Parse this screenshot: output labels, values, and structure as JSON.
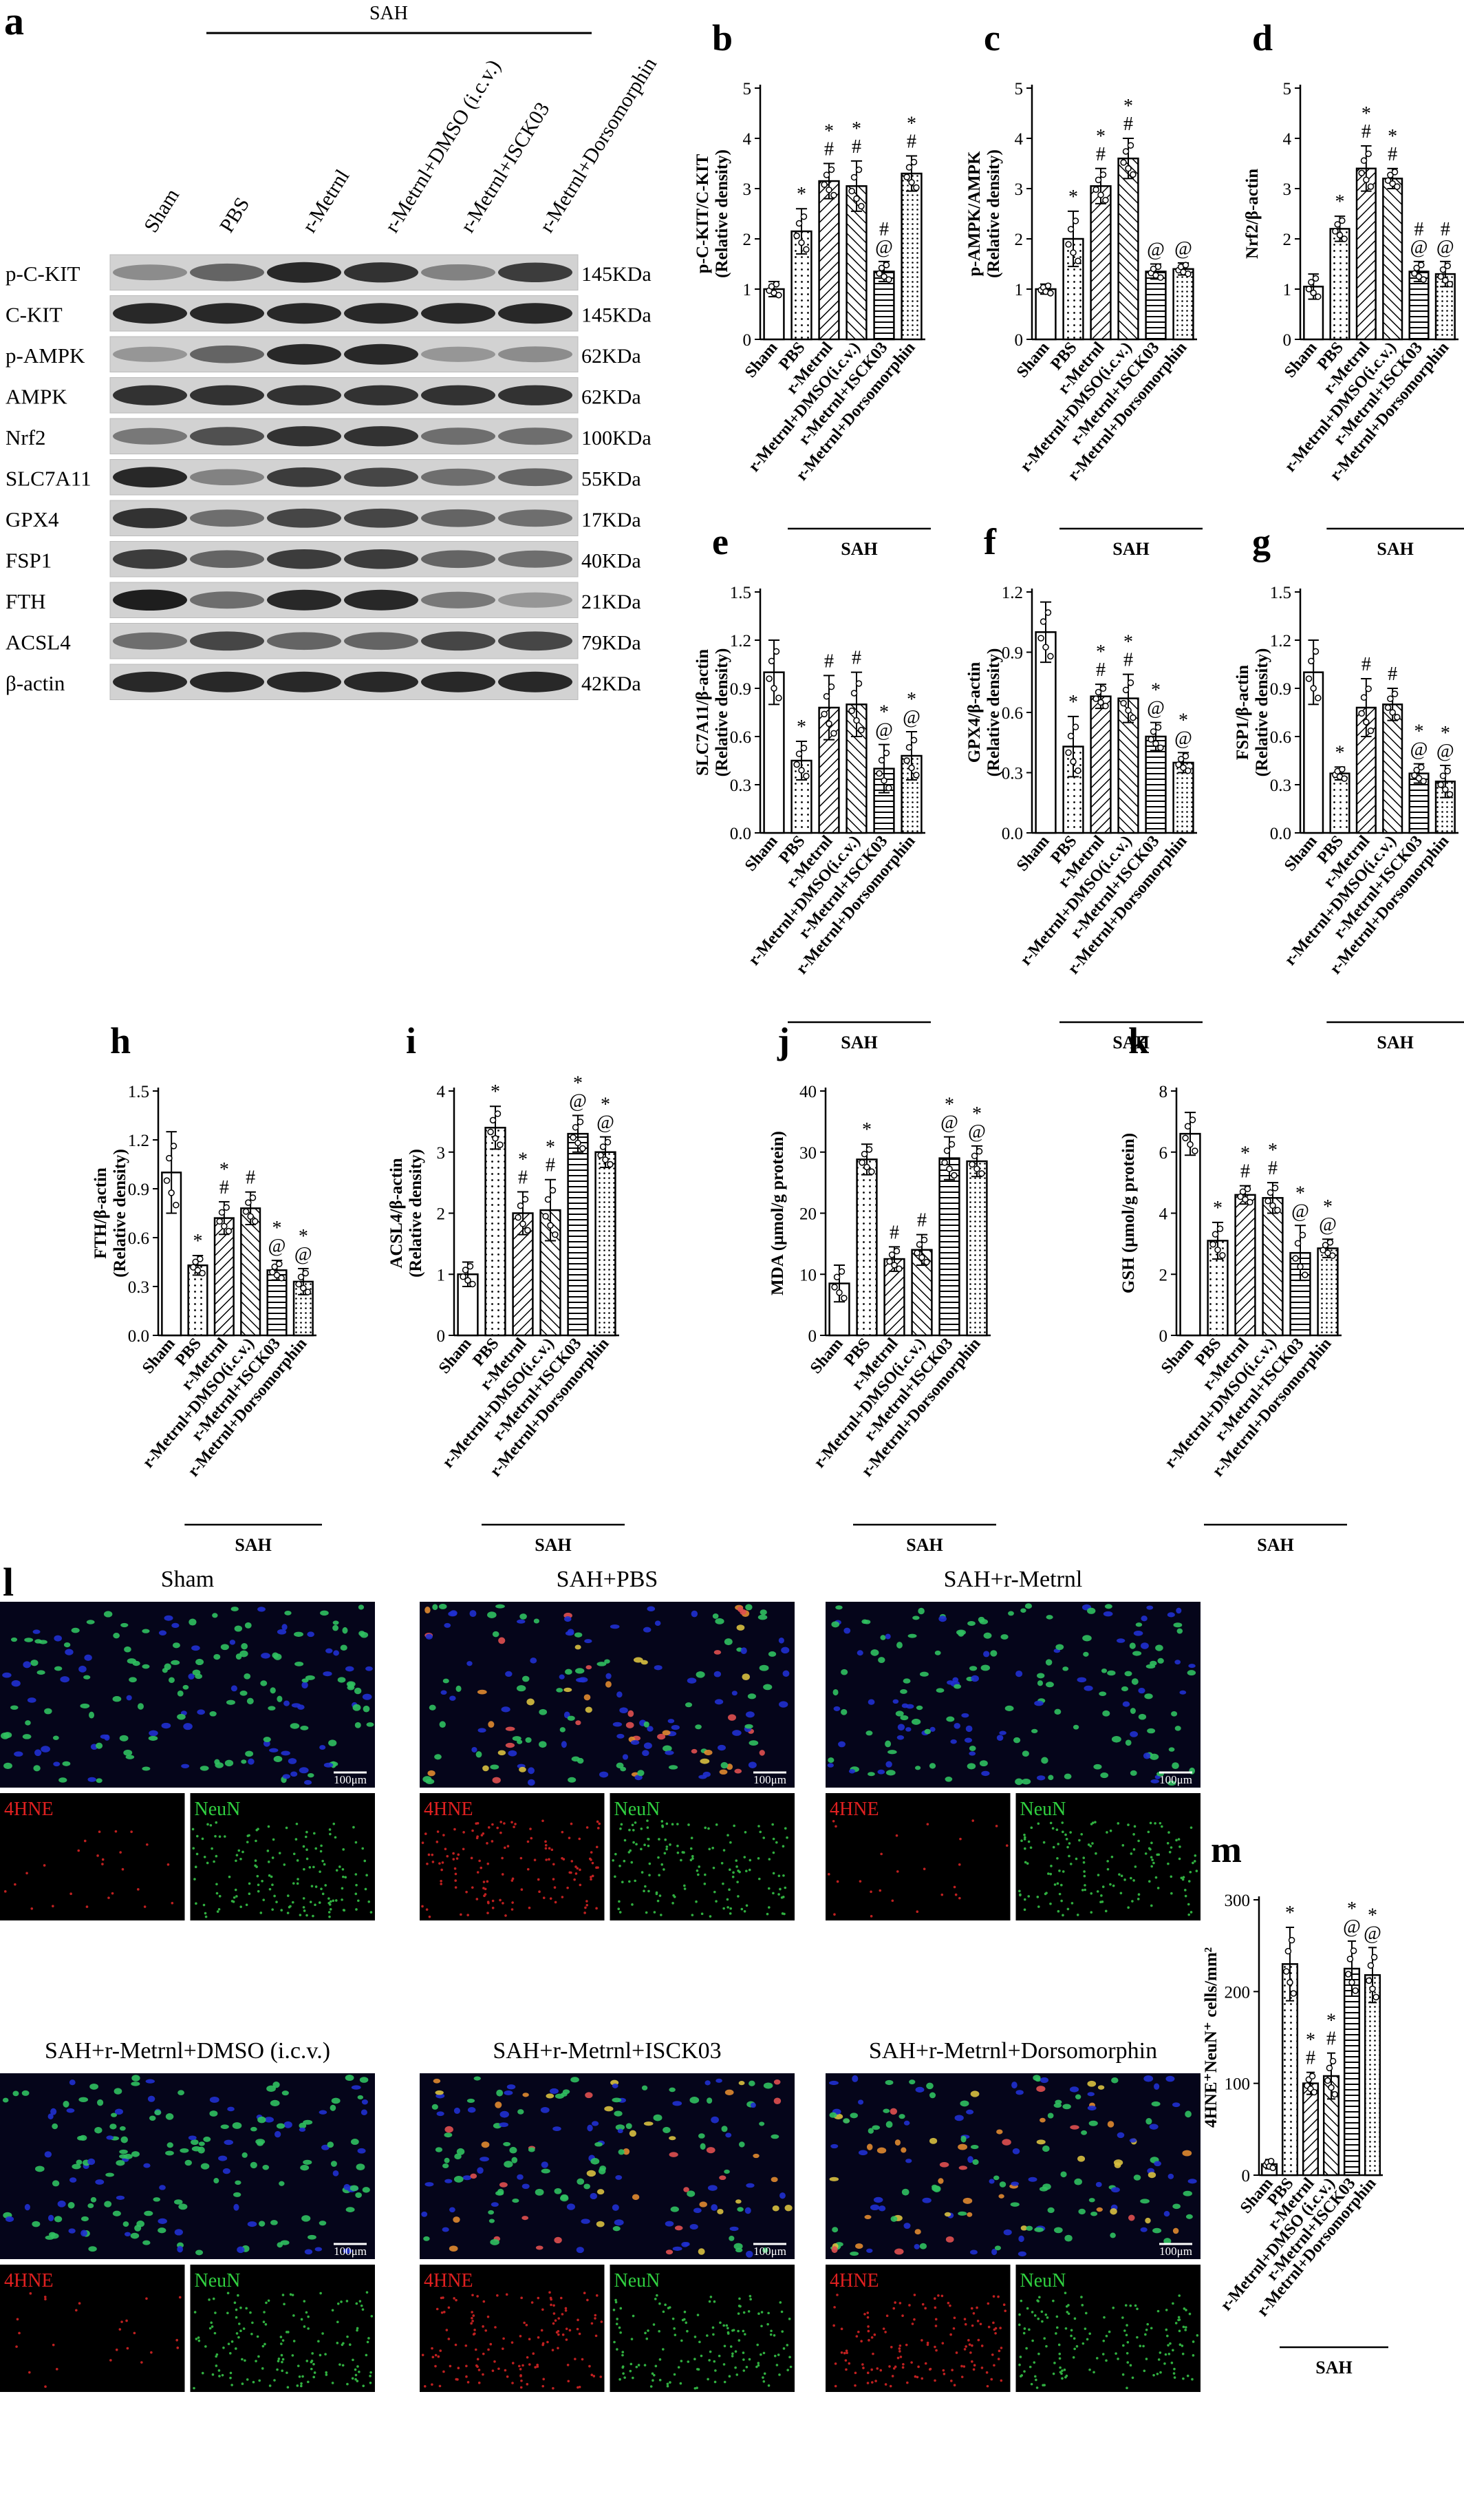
{
  "blot": {
    "panel_letter": "a",
    "group_label": "SAH",
    "lanes": [
      "Sham",
      "PBS",
      "r-Metrnl",
      "r-Metrnl+DMSO (i.c.v.)",
      "r-Metrnl+ISCK03",
      "r-Metrnl+Dorsomorphin"
    ],
    "rows": [
      {
        "protein": "p-C-KIT",
        "size": "145KDa",
        "intensity": [
          0.35,
          0.55,
          0.85,
          0.8,
          0.4,
          0.75
        ]
      },
      {
        "protein": "C-KIT",
        "size": "145KDa",
        "intensity": [
          0.85,
          0.85,
          0.85,
          0.85,
          0.85,
          0.85
        ]
      },
      {
        "protein": "p-AMPK",
        "size": "62KDa",
        "intensity": [
          0.3,
          0.55,
          0.85,
          0.85,
          0.3,
          0.35
        ]
      },
      {
        "protein": "AMPK",
        "size": "62KDa",
        "intensity": [
          0.8,
          0.8,
          0.8,
          0.8,
          0.8,
          0.8
        ]
      },
      {
        "protein": "Nrf2",
        "size": "100KDa",
        "intensity": [
          0.45,
          0.65,
          0.8,
          0.8,
          0.5,
          0.5
        ]
      },
      {
        "protein": "SLC7A11",
        "size": "55KDa",
        "intensity": [
          0.85,
          0.4,
          0.75,
          0.7,
          0.5,
          0.55
        ]
      },
      {
        "protein": "GPX4",
        "size": "17KDa",
        "intensity": [
          0.8,
          0.5,
          0.7,
          0.7,
          0.55,
          0.5
        ]
      },
      {
        "protein": "FSP1",
        "size": "40KDa",
        "intensity": [
          0.75,
          0.55,
          0.75,
          0.75,
          0.55,
          0.5
        ]
      },
      {
        "protein": "FTH",
        "size": "21KDa",
        "intensity": [
          0.9,
          0.5,
          0.85,
          0.85,
          0.45,
          0.3
        ]
      },
      {
        "protein": "ACSL4",
        "size": "79KDa",
        "intensity": [
          0.5,
          0.7,
          0.55,
          0.55,
          0.7,
          0.7
        ]
      },
      {
        "protein": "β-actin",
        "size": "42KDa",
        "intensity": [
          0.85,
          0.85,
          0.85,
          0.85,
          0.85,
          0.85
        ]
      }
    ]
  },
  "chart_data": [
    {
      "letter": "b",
      "type": "bar",
      "ylabel1": "p-C-KIT/C-KIT",
      "ylabel2": "(Relative density)",
      "ylim": [
        0,
        5
      ],
      "ticks": [
        "0",
        "1",
        "2",
        "3",
        "4",
        "5"
      ],
      "categories": [
        "Sham",
        "PBS",
        "r-Metrnl",
        "r-Metrnl+DMSO(i.c.v.)",
        "r-Metrnl+ISCK03",
        "r-Metrnl+Dorsomorphin"
      ],
      "values": [
        1.0,
        2.15,
        3.15,
        3.05,
        1.35,
        3.3
      ],
      "errors": [
        0.15,
        0.45,
        0.35,
        0.5,
        0.2,
        0.35
      ],
      "marks": [
        [],
        [
          "*"
        ],
        [
          "*",
          "#"
        ],
        [
          "*",
          "#"
        ],
        [
          "#",
          "@"
        ],
        [
          "*",
          "#"
        ]
      ],
      "group_label": "SAH"
    },
    {
      "letter": "c",
      "type": "bar",
      "ylabel1": "p-AMPK/AMPK",
      "ylabel2": "(Relative density)",
      "ylim": [
        0,
        5
      ],
      "ticks": [
        "0",
        "1",
        "2",
        "3",
        "4",
        "5"
      ],
      "categories": [
        "Sham",
        "PBS",
        "r-Metrnl",
        "r-Metrnl+DMSO(i.c.v.)",
        "r-Metrnl+ISCK03",
        "r-Metrnl+Dorsomorphin"
      ],
      "values": [
        1.0,
        2.0,
        3.05,
        3.6,
        1.35,
        1.4
      ],
      "errors": [
        0.1,
        0.55,
        0.35,
        0.4,
        0.15,
        0.12
      ],
      "marks": [
        [],
        [
          "*"
        ],
        [
          "*",
          "#"
        ],
        [
          "*",
          "#"
        ],
        [
          "@"
        ],
        [
          "@"
        ]
      ],
      "group_label": "SAH"
    },
    {
      "letter": "d",
      "type": "bar",
      "ylabel1": "Nrf2/β-actin",
      "ylabel2": "",
      "ylim": [
        0,
        5
      ],
      "ticks": [
        "0",
        "1",
        "2",
        "3",
        "4",
        "5"
      ],
      "categories": [
        "Sham",
        "PBS",
        "r-Metrnl",
        "r-Metrnl+DMSO(i.c.v.)",
        "r-Metrnl+ISCK03",
        "r-Metrnl+Dorsomorphin"
      ],
      "values": [
        1.05,
        2.2,
        3.4,
        3.2,
        1.35,
        1.3
      ],
      "errors": [
        0.25,
        0.25,
        0.45,
        0.2,
        0.2,
        0.25
      ],
      "marks": [
        [],
        [
          "*"
        ],
        [
          "*",
          "#"
        ],
        [
          "*",
          "#"
        ],
        [
          "#",
          "@"
        ],
        [
          "#",
          "@"
        ]
      ],
      "group_label": "SAH"
    },
    {
      "letter": "e",
      "type": "bar",
      "ylabel1": "SLC7A11/β-actin",
      "ylabel2": "(Relative density)",
      "ylim": [
        0,
        1.5
      ],
      "ticks": [
        "0.0",
        "0.3",
        "0.6",
        "0.9",
        "1.2",
        "1.5"
      ],
      "categories": [
        "Sham",
        "PBS",
        "r-Metrnl",
        "r-Metrnl+DMSO(i.c.v.)",
        "r-Metrnl+ISCK03",
        "r-Metrnl+Dorsomorphin"
      ],
      "values": [
        1.0,
        0.45,
        0.78,
        0.8,
        0.4,
        0.48
      ],
      "errors": [
        0.2,
        0.12,
        0.2,
        0.2,
        0.15,
        0.15
      ],
      "marks": [
        [],
        [
          "*"
        ],
        [
          "#"
        ],
        [
          "#"
        ],
        [
          "*",
          "@"
        ],
        [
          "*",
          "@"
        ]
      ],
      "group_label": "SAH"
    },
    {
      "letter": "f",
      "type": "bar",
      "ylabel1": "GPX4/β-actin",
      "ylabel2": "(Relative density)",
      "ylim": [
        0,
        1.2
      ],
      "ticks": [
        "0.0",
        "0.3",
        "0.6",
        "0.9",
        "1.2"
      ],
      "categories": [
        "Sham",
        "PBS",
        "r-Metrnl",
        "r-Metrnl+DMSO(i.c.v.)",
        "r-Metrnl+ISCK03",
        "r-Metrnl+Dorsomorphin"
      ],
      "values": [
        1.0,
        0.43,
        0.68,
        0.67,
        0.48,
        0.35
      ],
      "errors": [
        0.15,
        0.15,
        0.06,
        0.12,
        0.07,
        0.05
      ],
      "marks": [
        [],
        [
          "*"
        ],
        [
          "*",
          "#"
        ],
        [
          "*",
          "#"
        ],
        [
          "*",
          "@"
        ],
        [
          "*",
          "@"
        ]
      ],
      "group_label": "SAH"
    },
    {
      "letter": "g",
      "type": "bar",
      "ylabel1": "FSP1/β-actin",
      "ylabel2": "(Relative density)",
      "ylim": [
        0,
        1.5
      ],
      "ticks": [
        "0.0",
        "0.3",
        "0.6",
        "0.9",
        "1.2",
        "1.5"
      ],
      "categories": [
        "Sham",
        "PBS",
        "r-Metrnl",
        "r-Metrnl+DMSO(i.c.v.)",
        "r-Metrnl+ISCK03",
        "r-Metrnl+Dorsomorphin"
      ],
      "values": [
        1.0,
        0.37,
        0.78,
        0.8,
        0.37,
        0.32
      ],
      "errors": [
        0.2,
        0.04,
        0.18,
        0.1,
        0.06,
        0.1
      ],
      "marks": [
        [],
        [
          "*"
        ],
        [
          "#"
        ],
        [
          "#"
        ],
        [
          "*",
          "@"
        ],
        [
          "*",
          "@"
        ]
      ],
      "group_label": "SAH"
    },
    {
      "letter": "h",
      "type": "bar",
      "ylabel1": "FTH/β-actin",
      "ylabel2": "(Relative density)",
      "ylim": [
        0,
        1.5
      ],
      "ticks": [
        "0.0",
        "0.3",
        "0.6",
        "0.9",
        "1.2",
        "1.5"
      ],
      "categories": [
        "Sham",
        "PBS",
        "r-Metrnl",
        "r-Metrnl+DMSO(i.c.v.)",
        "r-Metrnl+ISCK03",
        "r-Metrnl+Dorsomorphin"
      ],
      "values": [
        1.0,
        0.43,
        0.72,
        0.78,
        0.4,
        0.33
      ],
      "errors": [
        0.25,
        0.06,
        0.1,
        0.1,
        0.06,
        0.08
      ],
      "marks": [
        [],
        [
          "*"
        ],
        [
          "*",
          "#"
        ],
        [
          "#"
        ],
        [
          "*",
          "@"
        ],
        [
          "*",
          "@"
        ]
      ],
      "group_label": "SAH"
    },
    {
      "letter": "i",
      "type": "bar",
      "ylabel1": "ACSL4/β-actin",
      "ylabel2": "(Relative density)",
      "ylim": [
        0,
        4
      ],
      "ticks": [
        "0",
        "1",
        "2",
        "3",
        "4"
      ],
      "categories": [
        "Sham",
        "PBS",
        "r-Metrnl",
        "r-Metrnl+DMSO(i.c.v.)",
        "r-Metrnl+ISCK03",
        "r-Metrnl+Dorsomorphin"
      ],
      "values": [
        1.0,
        3.4,
        2.0,
        2.05,
        3.3,
        3.0
      ],
      "errors": [
        0.2,
        0.35,
        0.35,
        0.5,
        0.3,
        0.25
      ],
      "marks": [
        [],
        [
          "*"
        ],
        [
          "*",
          "#"
        ],
        [
          "*",
          "#"
        ],
        [
          "*",
          "@"
        ],
        [
          "*",
          "@"
        ]
      ],
      "group_label": "SAH"
    },
    {
      "letter": "j",
      "type": "bar",
      "ylabel1": "MDA (μmol/g protein)",
      "ylabel2": "",
      "ylim": [
        0,
        40
      ],
      "ticks": [
        "0",
        "10",
        "20",
        "30",
        "40"
      ],
      "categories": [
        "Sham",
        "PBS",
        "r-Metrnl",
        "r-Metrnl+DMSO(i.c.v.)",
        "r-Metrnl+ISCK03",
        "r-Metrnl+Dorsomorphin"
      ],
      "values": [
        8.5,
        28.8,
        12.5,
        14.0,
        29.0,
        28.5
      ],
      "errors": [
        3.0,
        2.5,
        2.0,
        2.5,
        3.5,
        2.5
      ],
      "marks": [
        [],
        [
          "*"
        ],
        [
          "#"
        ],
        [
          "#"
        ],
        [
          "*",
          "@"
        ],
        [
          "*",
          "@"
        ]
      ],
      "group_label": "SAH"
    },
    {
      "letter": "k",
      "type": "bar",
      "ylabel1": "GSH (μmol/g protein)",
      "ylabel2": "",
      "ylim": [
        0,
        8
      ],
      "ticks": [
        "0",
        "2",
        "4",
        "6",
        "8"
      ],
      "categories": [
        "Sham",
        "PBS",
        "r-Metrnl",
        "r-Metrnl+DMSO(i.c.v.)",
        "r-Metrnl+ISCK03",
        "r-Metrnl+Dorsomorphin"
      ],
      "values": [
        6.6,
        3.1,
        4.6,
        4.5,
        2.7,
        2.85
      ],
      "errors": [
        0.7,
        0.6,
        0.3,
        0.5,
        0.9,
        0.3
      ],
      "marks": [
        [],
        [
          "*"
        ],
        [
          "*",
          "#"
        ],
        [
          "*",
          "#"
        ],
        [
          "*",
          "@"
        ],
        [
          "*",
          "@"
        ]
      ],
      "group_label": "SAH"
    },
    {
      "letter": "m",
      "type": "bar",
      "ylabel1": "4HNE⁺NeuN⁺ cells/mm²",
      "ylabel2": "",
      "ylim": [
        0,
        300
      ],
      "ticks": [
        "0",
        "100",
        "200",
        "300"
      ],
      "categories": [
        "Sham",
        "PBS",
        "r-Metrnl",
        "r-Metrnl+DMSO (i.c.v.)",
        "r-Metrnl+ISCK03",
        "r-Metrnl+Dorsomorphin"
      ],
      "values": [
        12,
        230,
        100,
        108,
        225,
        218
      ],
      "errors": [
        5,
        40,
        12,
        25,
        30,
        30
      ],
      "marks": [
        [],
        [
          "*"
        ],
        [
          "*",
          "#"
        ],
        [
          "*",
          "#"
        ],
        [
          "*",
          "@"
        ],
        [
          "*",
          "@"
        ]
      ],
      "group_label": "SAH"
    }
  ],
  "micrographs": {
    "panel_letter": "l",
    "scale_bar": "100μm",
    "channel_red": "4HNE",
    "channel_green": "NeuN",
    "panels": [
      {
        "title": "Sham",
        "hue_mix": "green"
      },
      {
        "title": "SAH+PBS",
        "hue_mix": "orange"
      },
      {
        "title": "SAH+r-Metrnl",
        "hue_mix": "green"
      },
      {
        "title": "SAH+r-Metrnl+DMSO (i.c.v.)",
        "hue_mix": "green"
      },
      {
        "title": "SAH+r-Metrnl+ISCK03",
        "hue_mix": "orange"
      },
      {
        "title": "SAH+r-Metrnl+Dorsomorphin",
        "hue_mix": "orange"
      }
    ]
  }
}
